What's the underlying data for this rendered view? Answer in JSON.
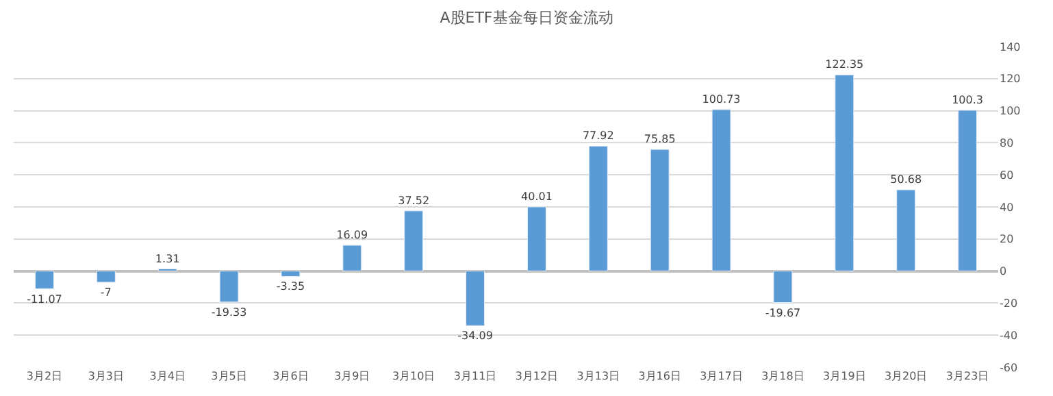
{
  "chart_data": {
    "type": "bar",
    "title": "A股ETF基金每日资金流动",
    "categories": [
      "3月2日",
      "3月3日",
      "3月4日",
      "3月5日",
      "3月6日",
      "3月9日",
      "3月10日",
      "3月11日",
      "3月12日",
      "3月13日",
      "3月16日",
      "3月17日",
      "3月18日",
      "3月19日",
      "3月20日",
      "3月23日"
    ],
    "values": [
      -11.07,
      -7,
      1.31,
      -19.33,
      -3.35,
      16.09,
      37.52,
      -34.09,
      40.01,
      77.92,
      75.85,
      100.73,
      -19.67,
      122.35,
      50.68,
      100.3
    ],
    "color": "#5b9bd5",
    "ylim": [
      -60,
      140
    ],
    "yticks": [
      -60,
      -40,
      -20,
      0,
      20,
      40,
      60,
      80,
      100,
      120,
      140
    ],
    "grid": "y",
    "data_labels": true
  }
}
